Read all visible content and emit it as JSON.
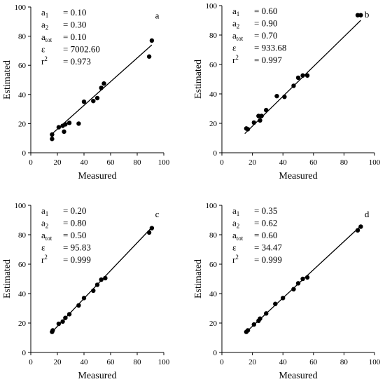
{
  "chart_data": [
    {
      "type": "scatter",
      "panel": "a",
      "xlabel": "Measured",
      "ylabel": "Estimated",
      "xlim": [
        0,
        100
      ],
      "ylim": [
        0,
        100
      ],
      "xticks": [
        0,
        20,
        40,
        60,
        80,
        100
      ],
      "yticks": [
        0,
        20,
        40,
        60,
        80,
        100
      ],
      "stats": [
        {
          "sym": "a",
          "sub": "1",
          "sup": "",
          "val": "= 0.10"
        },
        {
          "sym": "a",
          "sub": "2",
          "sup": "",
          "val": "= 0.30"
        },
        {
          "sym": "a",
          "sub": "tot",
          "sup": "",
          "val": "= 0.10"
        },
        {
          "sym": "ε",
          "sub": "",
          "sup": "",
          "val": "= 7002.60"
        },
        {
          "sym": "r",
          "sub": "",
          "sup": "2",
          "val": "= 0.973"
        }
      ],
      "points": [
        [
          16,
          9.5
        ],
        [
          16,
          12.5
        ],
        [
          21,
          17.5
        ],
        [
          24,
          18.5
        ],
        [
          25,
          14.5
        ],
        [
          26,
          19.5
        ],
        [
          29,
          20.5
        ],
        [
          36,
          20
        ],
        [
          40,
          35
        ],
        [
          47,
          35.5
        ],
        [
          50,
          37.5
        ],
        [
          53,
          44.5
        ],
        [
          55,
          47.5
        ],
        [
          89,
          66
        ],
        [
          91,
          77
        ]
      ],
      "fit": [
        [
          16,
          13
        ],
        [
          91,
          74
        ]
      ],
      "grid": false
    },
    {
      "type": "scatter",
      "panel": "b",
      "xlabel": "Measured",
      "ylabel": "Estimated",
      "xlim": [
        0,
        100
      ],
      "ylim": [
        0,
        100
      ],
      "xticks": [
        0,
        20,
        40,
        60,
        80,
        100
      ],
      "yticks": [
        0,
        20,
        40,
        60,
        80,
        100
      ],
      "stats": [
        {
          "sym": "a",
          "sub": "1",
          "sup": "",
          "val": "= 0.60"
        },
        {
          "sym": "a",
          "sub": "2",
          "sup": "",
          "val": "= 0.90"
        },
        {
          "sym": "a",
          "sub": "tot",
          "sup": "",
          "val": "= 0.70"
        },
        {
          "sym": "ε",
          "sub": "",
          "sup": "",
          "val": "= 933.68"
        },
        {
          "sym": "r",
          "sub": "",
          "sup": "2",
          "val": "= 0.997"
        }
      ],
      "points": [
        [
          16,
          16.5
        ],
        [
          17,
          16
        ],
        [
          21,
          20.5
        ],
        [
          24,
          25
        ],
        [
          25,
          22
        ],
        [
          26,
          25
        ],
        [
          29,
          29
        ],
        [
          36,
          38.5
        ],
        [
          41,
          38
        ],
        [
          47,
          45.5
        ],
        [
          50,
          51
        ],
        [
          53,
          52.5
        ],
        [
          56,
          52.5
        ],
        [
          89,
          93.5
        ],
        [
          91,
          93.5
        ]
      ],
      "fit": [
        [
          15,
          13
        ],
        [
          91,
          90
        ]
      ],
      "grid": false
    },
    {
      "type": "scatter",
      "panel": "c",
      "xlabel": "Measured",
      "ylabel": "Estimated",
      "xlim": [
        0,
        100
      ],
      "ylim": [
        0,
        100
      ],
      "xticks": [
        0,
        20,
        40,
        60,
        80,
        100
      ],
      "yticks": [
        0,
        20,
        40,
        60,
        80,
        100
      ],
      "stats": [
        {
          "sym": "a",
          "sub": "1",
          "sup": "",
          "val": "= 0.20"
        },
        {
          "sym": "a",
          "sub": "2",
          "sup": "",
          "val": "= 0.80"
        },
        {
          "sym": "a",
          "sub": "tot",
          "sup": "",
          "val": "= 0.50"
        },
        {
          "sym": "ε",
          "sub": "",
          "sup": "",
          "val": "= 95.83"
        },
        {
          "sym": "r",
          "sub": "",
          "sup": "2",
          "val": "= 0.999"
        }
      ],
      "points": [
        [
          16,
          14
        ],
        [
          16.5,
          15
        ],
        [
          21,
          19.5
        ],
        [
          24,
          21
        ],
        [
          26,
          23.5
        ],
        [
          29,
          26
        ],
        [
          36,
          32
        ],
        [
          40,
          37
        ],
        [
          47,
          42
        ],
        [
          50,
          46
        ],
        [
          53,
          49.5
        ],
        [
          56,
          50.5
        ],
        [
          89,
          81.5
        ],
        [
          91,
          84.5
        ]
      ],
      "fit": [
        [
          15,
          13
        ],
        [
          91,
          85
        ]
      ],
      "grid": false
    },
    {
      "type": "scatter",
      "panel": "d",
      "xlabel": "Measured",
      "ylabel": "Estimated",
      "xlim": [
        0,
        100
      ],
      "ylim": [
        0,
        100
      ],
      "xticks": [
        0,
        20,
        40,
        60,
        80,
        100
      ],
      "yticks": [
        0,
        20,
        40,
        60,
        80,
        100
      ],
      "stats": [
        {
          "sym": "a",
          "sub": "1",
          "sup": "",
          "val": "= 0.35"
        },
        {
          "sym": "a",
          "sub": "2",
          "sup": "",
          "val": "= 0.62"
        },
        {
          "sym": "a",
          "sub": "tot",
          "sup": "",
          "val": "= 0.60"
        },
        {
          "sym": "ε",
          "sub": "",
          "sup": "",
          "val": "= 34.47"
        },
        {
          "sym": "r",
          "sub": "",
          "sup": "2",
          "val": "= 0.999"
        }
      ],
      "points": [
        [
          16,
          14
        ],
        [
          17,
          15
        ],
        [
          21,
          19
        ],
        [
          24,
          21.5
        ],
        [
          25,
          23
        ],
        [
          29,
          26.5
        ],
        [
          35,
          33
        ],
        [
          40,
          37
        ],
        [
          47,
          43
        ],
        [
          50,
          47
        ],
        [
          53,
          50
        ],
        [
          56,
          51
        ],
        [
          89,
          83
        ],
        [
          91,
          85.5
        ]
      ],
      "fit": [
        [
          15,
          13
        ],
        [
          91,
          86
        ]
      ],
      "grid": false
    }
  ]
}
